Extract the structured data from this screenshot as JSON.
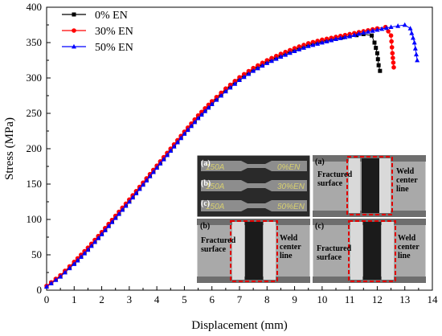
{
  "chart_data": {
    "type": "line",
    "xlabel": "Displacement (mm)",
    "ylabel": "Stress (MPa)",
    "xlim": [
      0,
      14
    ],
    "ylim": [
      0,
      400
    ],
    "xticks": [
      0,
      1,
      2,
      3,
      4,
      5,
      6,
      7,
      8,
      9,
      10,
      11,
      12,
      13,
      14
    ],
    "yticks": [
      0,
      50,
      100,
      150,
      200,
      250,
      300,
      350,
      400
    ],
    "legend_position": "top-left",
    "series": [
      {
        "name": "0% EN",
        "color": "#000000",
        "marker": "square",
        "x": [
          0,
          0.5,
          1,
          1.5,
          2,
          2.5,
          3,
          3.5,
          4,
          4.5,
          5,
          5.5,
          6,
          6.5,
          7,
          7.5,
          8,
          8.5,
          9,
          9.5,
          10,
          10.5,
          11,
          11.5,
          11.8,
          11.9,
          12.0,
          12.05,
          12.1
        ],
        "y": [
          5,
          20,
          38,
          58,
          80,
          103,
          126,
          150,
          174,
          198,
          222,
          245,
          265,
          283,
          299,
          312,
          323,
          332,
          340,
          347,
          352,
          356,
          359,
          362,
          360,
          350,
          335,
          318,
          310
        ]
      },
      {
        "name": "30% EN",
        "color": "#ff0000",
        "marker": "circle",
        "x": [
          0,
          0.5,
          1,
          1.5,
          2,
          2.5,
          3,
          3.5,
          4,
          4.5,
          5,
          5.5,
          6,
          6.5,
          7,
          7.5,
          8,
          8.5,
          9,
          9.5,
          10,
          10.5,
          11,
          11.5,
          12,
          12.3,
          12.5,
          12.55,
          12.6
        ],
        "y": [
          6,
          21,
          40,
          60,
          82,
          105,
          128,
          152,
          176,
          200,
          224,
          247,
          267,
          285,
          301,
          314,
          325,
          334,
          342,
          349,
          354,
          358,
          362,
          366,
          370,
          372,
          360,
          335,
          315
        ]
      },
      {
        "name": "50% EN",
        "color": "#0000ff",
        "marker": "triangle",
        "x": [
          0,
          0.5,
          1,
          1.5,
          2,
          2.5,
          3,
          3.5,
          4,
          4.5,
          5,
          5.5,
          6,
          6.5,
          7,
          7.5,
          8,
          8.5,
          9,
          9.5,
          10,
          10.5,
          11,
          11.5,
          12,
          12.5,
          13,
          13.2,
          13.35,
          13.45
        ],
        "y": [
          5,
          19,
          37,
          57,
          79,
          102,
          125,
          149,
          173,
          197,
          221,
          243,
          263,
          281,
          297,
          310,
          321,
          330,
          338,
          345,
          350,
          355,
          359,
          364,
          368,
          372,
          375,
          370,
          350,
          325
        ]
      }
    ]
  },
  "inset": {
    "panel_a_label": "(a)",
    "panel_b_label": "(b)",
    "panel_c_label": "(c)",
    "specimen_rows": [
      {
        "left": "150A",
        "right": "0%EN"
      },
      {
        "left": "150A",
        "right": "30%EN"
      },
      {
        "left": "150A",
        "right": "50%EN"
      }
    ],
    "fractured_surface_label": "Fractured surface",
    "fractured_surface_line1": "Fractured",
    "fractured_surface_line2": "surface",
    "weld_center_line1": "Weld",
    "weld_center_line2": "center",
    "weld_center_line3": "line"
  }
}
